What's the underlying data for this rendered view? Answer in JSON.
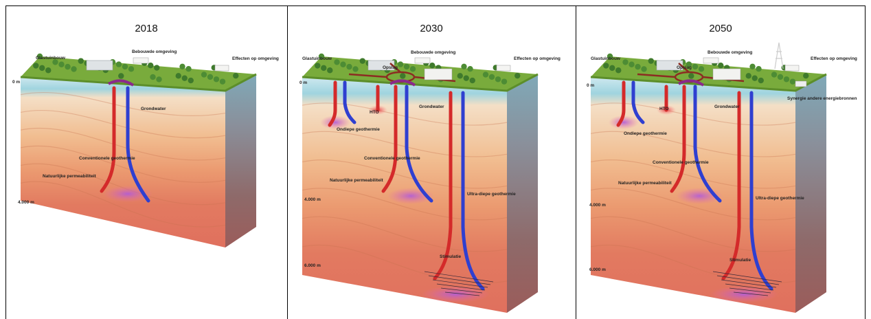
{
  "panels": [
    {
      "title": "2018",
      "labels": [
        "Glastuinbouw",
        "Bebouwde omgeving",
        "Effecten op omgeving",
        "0 m",
        "Grondwater",
        "Conventionele geothermie",
        "Natuurlijke permeabiliteit",
        "4.000 m"
      ]
    },
    {
      "title": "2030",
      "labels": [
        "Glastuinbouw",
        "Bebouwde omgeving",
        "Effecten op omgeving",
        "Opslag",
        "0 m",
        "HTO",
        "Grondwater",
        "Ondiepe geothermie",
        "Conventionele geothermie",
        "Natuurlijke permeabiliteit",
        "4.000 m",
        "Ultra-diepe geothermie",
        "6.000 m",
        "Stimulatie"
      ]
    },
    {
      "title": "2050",
      "labels": [
        "Glastuinbouw",
        "Bebouwde omgeving",
        "Effecten op omgeving",
        "Opslag",
        "0 m",
        "HTO",
        "Grondwater",
        "Synergie andere energiebronnen",
        "Ondiepe geothermie",
        "Conventionele geothermie",
        "Natuurlijke permeabiliteit",
        "4.000 m",
        "Ultra-diepe geothermie",
        "6.000 m",
        "Stimulatie"
      ]
    }
  ]
}
